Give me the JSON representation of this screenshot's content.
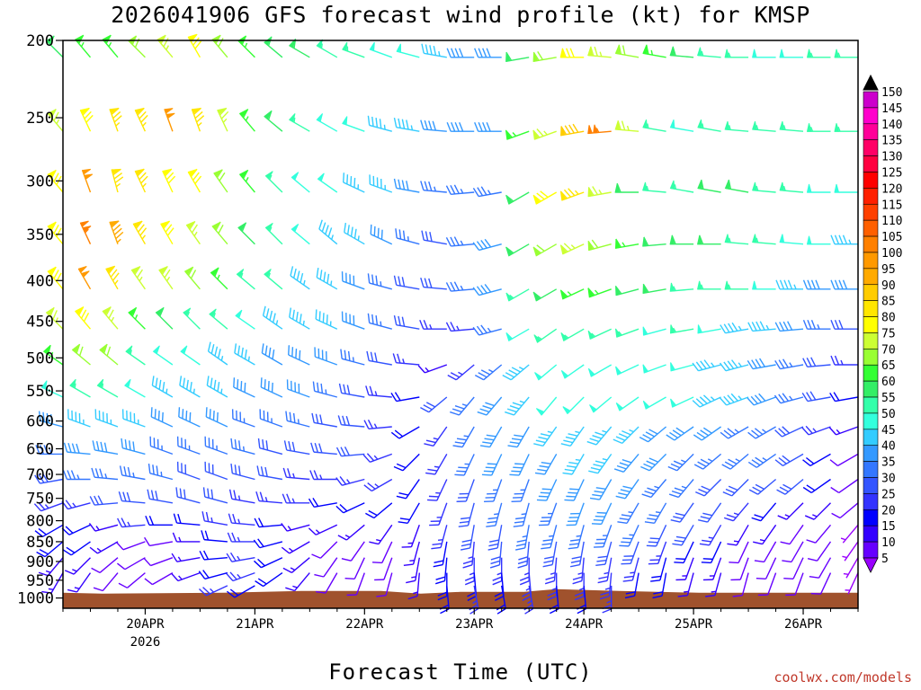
{
  "title": "2026041906 GFS forecast wind profile (kt) for KMSP",
  "xlabel": "Forecast Time (UTC)",
  "credit": "coolwx.com/models",
  "chart_data": {
    "type": "wind-barb-time-height",
    "title": "2026041906 GFS forecast wind profile (kt) for KMSP",
    "xlabel": "Forecast Time (UTC)",
    "ylabel": "",
    "y_axis": {
      "ticks": [
        200,
        250,
        300,
        350,
        400,
        450,
        500,
        550,
        600,
        650,
        700,
        750,
        800,
        850,
        900,
        950,
        1000
      ],
      "range": [
        200,
        1030
      ]
    },
    "x_axis": {
      "ticks": [
        "20APR",
        "21APR",
        "22APR",
        "23APR",
        "24APR",
        "25APR",
        "26APR"
      ],
      "sub_label": "2026",
      "range_hours": [
        6,
        180
      ]
    },
    "levels": [
      210,
      260,
      310,
      360,
      410,
      460,
      510,
      560,
      610,
      660,
      710,
      760,
      810,
      850,
      890,
      930,
      965
    ],
    "times": [
      6,
      12,
      18,
      24,
      30,
      36,
      42,
      48,
      54,
      60,
      66,
      72,
      78,
      84,
      90,
      96,
      102,
      108,
      114,
      120,
      126,
      132,
      138,
      144,
      150,
      156,
      162,
      168,
      174,
      180
    ],
    "speeds_kt": [
      [
        60,
        65,
        65,
        70,
        75,
        80,
        70,
        65,
        60,
        60,
        55,
        55,
        50,
        50,
        45,
        40,
        40,
        60,
        70,
        80,
        75,
        70,
        65,
        60,
        55,
        55,
        50,
        50,
        55,
        55
      ],
      [
        75,
        80,
        85,
        85,
        100,
        85,
        75,
        65,
        60,
        55,
        50,
        50,
        45,
        45,
        40,
        40,
        40,
        65,
        75,
        90,
        105,
        75,
        55,
        50,
        55,
        55,
        55,
        55,
        55,
        55
      ],
      [
        80,
        100,
        85,
        85,
        80,
        80,
        70,
        65,
        55,
        50,
        50,
        45,
        45,
        40,
        35,
        35,
        35,
        60,
        80,
        85,
        75,
        60,
        55,
        55,
        60,
        60,
        55,
        55,
        50,
        50
      ],
      [
        80,
        105,
        95,
        85,
        80,
        75,
        70,
        60,
        55,
        50,
        45,
        45,
        40,
        35,
        30,
        35,
        40,
        60,
        70,
        75,
        70,
        65,
        60,
        60,
        60,
        55,
        55,
        50,
        50,
        45
      ],
      [
        80,
        100,
        85,
        75,
        75,
        70,
        65,
        55,
        55,
        45,
        45,
        40,
        35,
        30,
        30,
        35,
        40,
        55,
        60,
        65,
        65,
        60,
        60,
        55,
        55,
        55,
        50,
        45,
        40,
        40
      ],
      [
        75,
        80,
        75,
        65,
        60,
        55,
        55,
        50,
        45,
        45,
        45,
        40,
        35,
        30,
        25,
        25,
        35,
        50,
        55,
        55,
        55,
        55,
        50,
        55,
        50,
        45,
        45,
        40,
        35,
        30
      ],
      [
        65,
        70,
        70,
        55,
        50,
        50,
        45,
        45,
        40,
        40,
        40,
        35,
        30,
        25,
        15,
        25,
        35,
        45,
        50,
        50,
        50,
        50,
        50,
        50,
        45,
        45,
        40,
        35,
        30,
        25
      ],
      [
        50,
        55,
        55,
        50,
        45,
        45,
        45,
        40,
        40,
        40,
        35,
        30,
        25,
        20,
        30,
        35,
        40,
        45,
        50,
        50,
        50,
        50,
        50,
        50,
        45,
        45,
        40,
        35,
        30,
        20
      ],
      [
        40,
        45,
        45,
        45,
        40,
        40,
        40,
        35,
        35,
        35,
        30,
        30,
        25,
        20,
        25,
        35,
        40,
        40,
        45,
        45,
        45,
        45,
        40,
        40,
        40,
        35,
        35,
        30,
        25,
        15
      ],
      [
        35,
        40,
        40,
        40,
        35,
        35,
        35,
        35,
        30,
        30,
        30,
        30,
        25,
        20,
        25,
        35,
        40,
        40,
        40,
        45,
        45,
        40,
        40,
        35,
        35,
        35,
        35,
        30,
        20,
        10
      ],
      [
        30,
        35,
        35,
        35,
        35,
        30,
        30,
        30,
        30,
        25,
        25,
        25,
        25,
        20,
        25,
        30,
        35,
        35,
        40,
        40,
        40,
        40,
        35,
        35,
        30,
        30,
        30,
        30,
        20,
        10
      ],
      [
        25,
        25,
        30,
        30,
        30,
        30,
        30,
        25,
        25,
        25,
        20,
        20,
        20,
        20,
        25,
        30,
        35,
        35,
        35,
        40,
        40,
        35,
        35,
        30,
        30,
        25,
        20,
        15,
        15,
        10
      ],
      [
        20,
        20,
        15,
        25,
        20,
        20,
        25,
        25,
        20,
        15,
        15,
        15,
        15,
        15,
        25,
        30,
        30,
        35,
        35,
        35,
        35,
        35,
        30,
        30,
        25,
        15,
        15,
        10,
        10,
        5
      ],
      [
        20,
        20,
        15,
        10,
        10,
        15,
        20,
        25,
        20,
        15,
        10,
        10,
        10,
        15,
        20,
        25,
        30,
        30,
        30,
        30,
        30,
        30,
        25,
        20,
        20,
        10,
        10,
        10,
        10,
        5
      ],
      [
        15,
        15,
        10,
        10,
        10,
        15,
        20,
        25,
        20,
        15,
        10,
        10,
        10,
        15,
        20,
        25,
        25,
        25,
        25,
        25,
        25,
        25,
        20,
        15,
        15,
        10,
        10,
        10,
        10,
        5
      ],
      [
        15,
        15,
        10,
        10,
        10,
        15,
        20,
        25,
        20,
        15,
        10,
        10,
        10,
        15,
        20,
        20,
        20,
        25,
        25,
        25,
        25,
        20,
        20,
        15,
        15,
        10,
        10,
        10,
        10,
        5
      ],
      [
        0,
        0,
        0,
        0,
        0,
        0,
        25,
        20,
        0,
        0,
        0,
        0,
        0,
        0,
        20,
        25,
        20,
        25,
        20,
        20,
        25,
        0,
        0,
        0,
        0,
        0,
        0,
        0,
        0,
        0
      ]
    ],
    "directions_deg": [
      [
        315,
        320,
        320,
        315,
        320,
        330,
        320,
        315,
        310,
        300,
        300,
        290,
        290,
        285,
        280,
        270,
        270,
        260,
        260,
        270,
        275,
        280,
        280,
        275,
        275,
        270,
        270,
        270,
        270,
        270
      ],
      [
        320,
        335,
        340,
        335,
        340,
        340,
        335,
        320,
        310,
        300,
        300,
        290,
        285,
        280,
        275,
        270,
        270,
        250,
        250,
        260,
        265,
        275,
        280,
        280,
        280,
        275,
        275,
        275,
        270,
        270
      ],
      [
        320,
        340,
        345,
        335,
        335,
        330,
        325,
        320,
        315,
        310,
        305,
        295,
        290,
        280,
        275,
        265,
        260,
        240,
        240,
        250,
        260,
        270,
        275,
        280,
        280,
        280,
        275,
        275,
        270,
        270
      ],
      [
        320,
        335,
        340,
        330,
        330,
        325,
        320,
        315,
        315,
        310,
        310,
        300,
        295,
        285,
        280,
        265,
        255,
        240,
        240,
        245,
        255,
        260,
        265,
        270,
        270,
        275,
        275,
        275,
        270,
        270
      ],
      [
        320,
        330,
        330,
        325,
        325,
        320,
        315,
        310,
        310,
        305,
        300,
        290,
        285,
        280,
        275,
        265,
        255,
        240,
        240,
        245,
        250,
        255,
        260,
        265,
        270,
        270,
        270,
        270,
        270,
        270
      ],
      [
        315,
        320,
        320,
        315,
        315,
        315,
        310,
        305,
        305,
        300,
        295,
        290,
        285,
        280,
        270,
        265,
        255,
        240,
        235,
        240,
        245,
        250,
        255,
        260,
        260,
        260,
        265,
        265,
        270,
        270
      ],
      [
        305,
        310,
        310,
        305,
        305,
        305,
        305,
        300,
        300,
        295,
        290,
        285,
        280,
        275,
        250,
        230,
        230,
        230,
        230,
        235,
        240,
        245,
        250,
        255,
        255,
        255,
        260,
        260,
        265,
        270
      ],
      [
        295,
        300,
        300,
        300,
        300,
        300,
        300,
        295,
        295,
        290,
        285,
        280,
        275,
        260,
        230,
        220,
        220,
        220,
        220,
        225,
        230,
        235,
        240,
        245,
        245,
        250,
        250,
        255,
        260,
        260
      ],
      [
        285,
        290,
        290,
        290,
        295,
        295,
        295,
        290,
        290,
        285,
        280,
        275,
        265,
        240,
        215,
        210,
        210,
        210,
        215,
        215,
        220,
        225,
        230,
        235,
        235,
        240,
        240,
        245,
        250,
        250
      ],
      [
        270,
        275,
        280,
        285,
        290,
        290,
        290,
        285,
        285,
        280,
        275,
        265,
        250,
        225,
        210,
        205,
        205,
        205,
        210,
        210,
        215,
        220,
        225,
        225,
        230,
        230,
        235,
        240,
        240,
        240
      ],
      [
        260,
        270,
        275,
        280,
        285,
        290,
        290,
        285,
        280,
        275,
        270,
        255,
        240,
        215,
        205,
        200,
        200,
        200,
        205,
        205,
        210,
        215,
        220,
        220,
        225,
        225,
        230,
        230,
        235,
        235
      ],
      [
        250,
        255,
        265,
        275,
        280,
        285,
        285,
        280,
        275,
        270,
        260,
        245,
        230,
        210,
        200,
        195,
        195,
        195,
        200,
        200,
        205,
        210,
        210,
        215,
        215,
        220,
        220,
        225,
        225,
        230
      ],
      [
        240,
        245,
        255,
        265,
        270,
        275,
        280,
        275,
        265,
        255,
        245,
        230,
        215,
        200,
        195,
        190,
        190,
        190,
        195,
        195,
        200,
        205,
        205,
        210,
        210,
        210,
        215,
        215,
        220,
        220
      ],
      [
        230,
        235,
        240,
        250,
        260,
        270,
        275,
        270,
        255,
        240,
        225,
        215,
        205,
        195,
        190,
        185,
        185,
        185,
        190,
        190,
        195,
        200,
        200,
        205,
        205,
        205,
        210,
        210,
        215,
        215
      ],
      [
        220,
        225,
        230,
        240,
        250,
        260,
        265,
        260,
        245,
        230,
        215,
        205,
        200,
        190,
        185,
        180,
        180,
        180,
        185,
        185,
        190,
        195,
        195,
        200,
        200,
        200,
        205,
        205,
        210,
        210
      ],
      [
        210,
        215,
        220,
        230,
        240,
        250,
        255,
        250,
        235,
        220,
        210,
        200,
        195,
        185,
        180,
        175,
        175,
        175,
        180,
        180,
        185,
        190,
        190,
        195,
        195,
        195,
        200,
        200,
        205,
        205
      ],
      [
        0,
        0,
        0,
        0,
        0,
        0,
        245,
        240,
        0,
        0,
        0,
        0,
        0,
        0,
        175,
        170,
        170,
        170,
        175,
        175,
        180,
        0,
        0,
        0,
        0,
        0,
        0,
        0,
        0,
        0
      ]
    ],
    "colorbar": {
      "label_values": [
        150,
        145,
        140,
        135,
        130,
        125,
        120,
        115,
        110,
        105,
        100,
        95,
        90,
        85,
        80,
        75,
        70,
        65,
        60,
        55,
        50,
        45,
        40,
        35,
        30,
        25,
        20,
        15,
        10,
        5
      ],
      "colors": [
        "#cc00cc",
        "#ff00cc",
        "#ff0099",
        "#ff0066",
        "#ff0040",
        "#ff0000",
        "#ff2000",
        "#ff4000",
        "#ff6000",
        "#ff8000",
        "#ff9900",
        "#ffaa00",
        "#ffcc00",
        "#ffe600",
        "#ffff00",
        "#ccff33",
        "#99ff33",
        "#33ff33",
        "#33ee66",
        "#33ffaa",
        "#33ffdd",
        "#33ccff",
        "#3399ff",
        "#3377ff",
        "#3355ff",
        "#3333ff",
        "#0000ff",
        "#3300ff",
        "#6600ff",
        "#9900ff"
      ]
    },
    "surface_pressure_hpa": 985,
    "surface_color": "#a0522d",
    "legend": "right"
  }
}
